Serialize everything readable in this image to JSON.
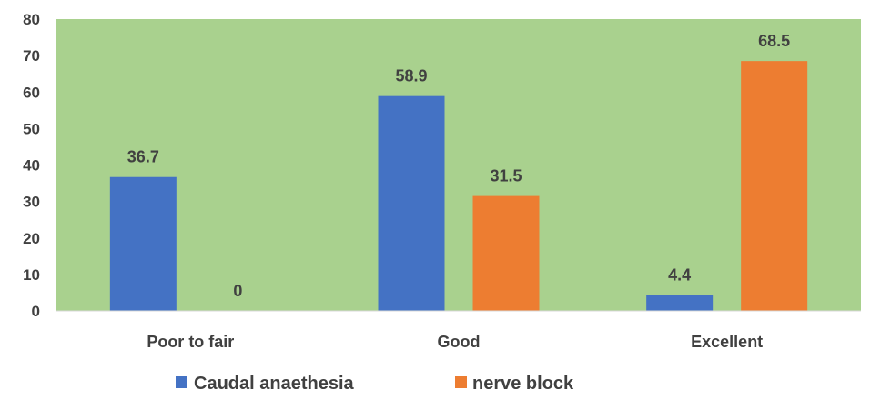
{
  "chart_data": {
    "type": "bar",
    "categories": [
      "Poor to fair",
      "Good",
      "Excellent"
    ],
    "series": [
      {
        "name": "Caudal anaethesia",
        "values": [
          36.7,
          58.9,
          4.4
        ],
        "color": "#4472C4"
      },
      {
        "name": "nerve block",
        "values": [
          0,
          31.5,
          68.5
        ],
        "color": "#ED7D31"
      }
    ],
    "ylim": [
      0,
      80
    ],
    "yticks": [
      0,
      10,
      20,
      30,
      40,
      50,
      60,
      70,
      80
    ],
    "grid": false,
    "legend_position": "bottom",
    "plot_background": "#A9D18E",
    "title": "",
    "xlabel": "",
    "ylabel": ""
  }
}
